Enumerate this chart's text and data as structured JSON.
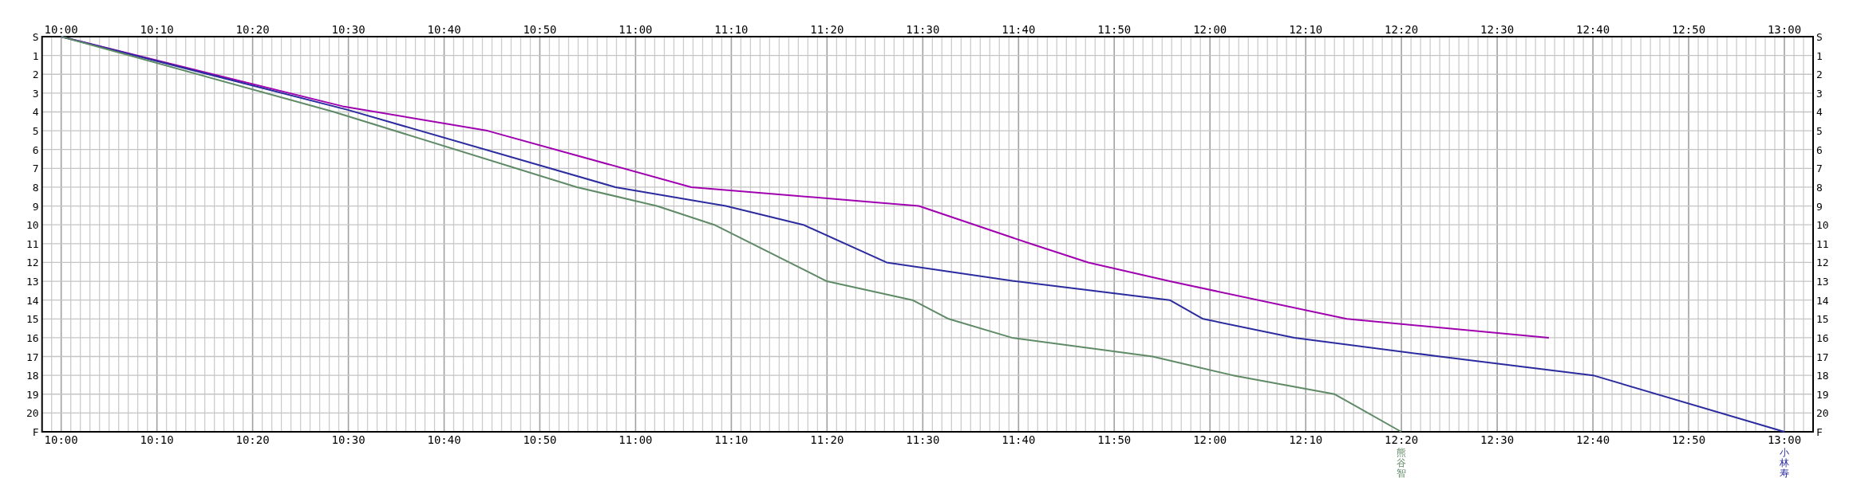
{
  "chart_data": {
    "type": "line",
    "grid": true,
    "xlim": [
      9.9667,
      13.05
    ],
    "x2lim": [
      9.9667,
      13.05
    ],
    "ylim": [
      21,
      0
    ],
    "y2lim": [
      21,
      0
    ],
    "xticks": [
      {
        "value": 9.9833,
        "label": null
      },
      {
        "value": 10,
        "label": "10:00"
      },
      {
        "value": 10.0167,
        "label": null
      },
      {
        "value": 10.0333,
        "label": null
      },
      {
        "value": 10.05,
        "label": null
      },
      {
        "value": 10.0667,
        "label": null
      },
      {
        "value": 10.0833,
        "label": null
      },
      {
        "value": 10.1,
        "label": null
      },
      {
        "value": 10.1167,
        "label": null
      },
      {
        "value": 10.1333,
        "label": null
      },
      {
        "value": 10.15,
        "label": null
      },
      {
        "value": 10.1667,
        "label": "10:10"
      },
      {
        "value": 10.1833,
        "label": null
      },
      {
        "value": 10.2,
        "label": null
      },
      {
        "value": 10.2167,
        "label": null
      },
      {
        "value": 10.2333,
        "label": null
      },
      {
        "value": 10.25,
        "label": null
      },
      {
        "value": 10.2667,
        "label": null
      },
      {
        "value": 10.2833,
        "label": null
      },
      {
        "value": 10.3,
        "label": null
      },
      {
        "value": 10.3167,
        "label": null
      },
      {
        "value": 10.3333,
        "label": "10:20"
      },
      {
        "value": 10.35,
        "label": null
      },
      {
        "value": 10.3667,
        "label": null
      },
      {
        "value": 10.3833,
        "label": null
      },
      {
        "value": 10.4,
        "label": null
      },
      {
        "value": 10.4167,
        "label": null
      },
      {
        "value": 10.4333,
        "label": null
      },
      {
        "value": 10.45,
        "label": null
      },
      {
        "value": 10.4667,
        "label": null
      },
      {
        "value": 10.4833,
        "label": null
      },
      {
        "value": 10.5,
        "label": "10:30"
      },
      {
        "value": 10.5167,
        "label": null
      },
      {
        "value": 10.5333,
        "label": null
      },
      {
        "value": 10.55,
        "label": null
      },
      {
        "value": 10.5667,
        "label": null
      },
      {
        "value": 10.5833,
        "label": null
      },
      {
        "value": 10.6,
        "label": null
      },
      {
        "value": 10.6167,
        "label": null
      },
      {
        "value": 10.6333,
        "label": null
      },
      {
        "value": 10.65,
        "label": null
      },
      {
        "value": 10.6667,
        "label": "10:40"
      },
      {
        "value": 10.6833,
        "label": null
      },
      {
        "value": 10.7,
        "label": null
      },
      {
        "value": 10.7167,
        "label": null
      },
      {
        "value": 10.7333,
        "label": null
      },
      {
        "value": 10.75,
        "label": null
      },
      {
        "value": 10.7667,
        "label": null
      },
      {
        "value": 10.7833,
        "label": null
      },
      {
        "value": 10.8,
        "label": null
      },
      {
        "value": 10.8167,
        "label": null
      },
      {
        "value": 10.8333,
        "label": "10:50"
      },
      {
        "value": 10.85,
        "label": null
      },
      {
        "value": 10.8667,
        "label": null
      },
      {
        "value": 10.8833,
        "label": null
      },
      {
        "value": 10.9,
        "label": null
      },
      {
        "value": 10.9167,
        "label": null
      },
      {
        "value": 10.9333,
        "label": null
      },
      {
        "value": 10.95,
        "label": null
      },
      {
        "value": 10.9667,
        "label": null
      },
      {
        "value": 10.9833,
        "label": null
      },
      {
        "value": 11,
        "label": "11:00"
      },
      {
        "value": 11.0167,
        "label": null
      },
      {
        "value": 11.0333,
        "label": null
      },
      {
        "value": 11.05,
        "label": null
      },
      {
        "value": 11.0667,
        "label": null
      },
      {
        "value": 11.0833,
        "label": null
      },
      {
        "value": 11.1,
        "label": null
      },
      {
        "value": 11.1167,
        "label": null
      },
      {
        "value": 11.1333,
        "label": null
      },
      {
        "value": 11.15,
        "label": null
      },
      {
        "value": 11.1667,
        "label": "11:10"
      },
      {
        "value": 11.1833,
        "label": null
      },
      {
        "value": 11.2,
        "label": null
      },
      {
        "value": 11.2167,
        "label": null
      },
      {
        "value": 11.2333,
        "label": null
      },
      {
        "value": 11.25,
        "label": null
      },
      {
        "value": 11.2667,
        "label": null
      },
      {
        "value": 11.2833,
        "label": null
      },
      {
        "value": 11.3,
        "label": null
      },
      {
        "value": 11.3167,
        "label": null
      },
      {
        "value": 11.3333,
        "label": "11:20"
      },
      {
        "value": 11.35,
        "label": null
      },
      {
        "value": 11.3667,
        "label": null
      },
      {
        "value": 11.3833,
        "label": null
      },
      {
        "value": 11.4,
        "label": null
      },
      {
        "value": 11.4167,
        "label": null
      },
      {
        "value": 11.4333,
        "label": null
      },
      {
        "value": 11.45,
        "label": null
      },
      {
        "value": 11.4667,
        "label": null
      },
      {
        "value": 11.4833,
        "label": null
      },
      {
        "value": 11.5,
        "label": "11:30"
      },
      {
        "value": 11.5167,
        "label": null
      },
      {
        "value": 11.5333,
        "label": null
      },
      {
        "value": 11.55,
        "label": null
      },
      {
        "value": 11.5667,
        "label": null
      },
      {
        "value": 11.5833,
        "label": null
      },
      {
        "value": 11.6,
        "label": null
      },
      {
        "value": 11.6167,
        "label": null
      },
      {
        "value": 11.6333,
        "label": null
      },
      {
        "value": 11.65,
        "label": null
      },
      {
        "value": 11.6667,
        "label": "11:40"
      },
      {
        "value": 11.6833,
        "label": null
      },
      {
        "value": 11.7,
        "label": null
      },
      {
        "value": 11.7167,
        "label": null
      },
      {
        "value": 11.7333,
        "label": null
      },
      {
        "value": 11.75,
        "label": null
      },
      {
        "value": 11.7667,
        "label": null
      },
      {
        "value": 11.7833,
        "label": null
      },
      {
        "value": 11.8,
        "label": null
      },
      {
        "value": 11.8167,
        "label": null
      },
      {
        "value": 11.8333,
        "label": "11:50"
      },
      {
        "value": 11.85,
        "label": null
      },
      {
        "value": 11.8667,
        "label": null
      },
      {
        "value": 11.8833,
        "label": null
      },
      {
        "value": 11.9,
        "label": null
      },
      {
        "value": 11.9167,
        "label": null
      },
      {
        "value": 11.9333,
        "label": null
      },
      {
        "value": 11.95,
        "label": null
      },
      {
        "value": 11.9667,
        "label": null
      },
      {
        "value": 11.9833,
        "label": null
      },
      {
        "value": 12,
        "label": "12:00"
      },
      {
        "value": 12.0167,
        "label": null
      },
      {
        "value": 12.0333,
        "label": null
      },
      {
        "value": 12.05,
        "label": null
      },
      {
        "value": 12.0667,
        "label": null
      },
      {
        "value": 12.0833,
        "label": null
      },
      {
        "value": 12.1,
        "label": null
      },
      {
        "value": 12.1167,
        "label": null
      },
      {
        "value": 12.1333,
        "label": null
      },
      {
        "value": 12.15,
        "label": null
      },
      {
        "value": 12.1667,
        "label": "12:10"
      },
      {
        "value": 12.1833,
        "label": null
      },
      {
        "value": 12.2,
        "label": null
      },
      {
        "value": 12.2167,
        "label": null
      },
      {
        "value": 12.2333,
        "label": null
      },
      {
        "value": 12.25,
        "label": null
      },
      {
        "value": 12.2667,
        "label": null
      },
      {
        "value": 12.2833,
        "label": null
      },
      {
        "value": 12.3,
        "label": null
      },
      {
        "value": 12.3167,
        "label": null
      },
      {
        "value": 12.3333,
        "label": "12:20"
      },
      {
        "value": 12.35,
        "label": null
      },
      {
        "value": 12.3667,
        "label": null
      },
      {
        "value": 12.3833,
        "label": null
      },
      {
        "value": 12.4,
        "label": null
      },
      {
        "value": 12.4167,
        "label": null
      },
      {
        "value": 12.4333,
        "label": null
      },
      {
        "value": 12.45,
        "label": null
      },
      {
        "value": 12.4667,
        "label": null
      },
      {
        "value": 12.4833,
        "label": null
      },
      {
        "value": 12.5,
        "label": "12:30"
      },
      {
        "value": 12.5167,
        "label": null
      },
      {
        "value": 12.5333,
        "label": null
      },
      {
        "value": 12.55,
        "label": null
      },
      {
        "value": 12.5667,
        "label": null
      },
      {
        "value": 12.5833,
        "label": null
      },
      {
        "value": 12.6,
        "label": null
      },
      {
        "value": 12.6167,
        "label": null
      },
      {
        "value": 12.6333,
        "label": null
      },
      {
        "value": 12.65,
        "label": null
      },
      {
        "value": 12.6667,
        "label": "12:40"
      },
      {
        "value": 12.6833,
        "label": null
      },
      {
        "value": 12.7,
        "label": null
      },
      {
        "value": 12.7167,
        "label": null
      },
      {
        "value": 12.7333,
        "label": null
      },
      {
        "value": 12.75,
        "label": null
      },
      {
        "value": 12.7667,
        "label": null
      },
      {
        "value": 12.7833,
        "label": null
      },
      {
        "value": 12.8,
        "label": null
      },
      {
        "value": 12.8167,
        "label": null
      },
      {
        "value": 12.8333,
        "label": "12:50"
      },
      {
        "value": 12.85,
        "label": null
      },
      {
        "value": 12.8667,
        "label": null
      },
      {
        "value": 12.8833,
        "label": null
      },
      {
        "value": 12.9,
        "label": null
      },
      {
        "value": 12.9167,
        "label": null
      },
      {
        "value": 12.9333,
        "label": null
      },
      {
        "value": 12.95,
        "label": null
      },
      {
        "value": 12.9667,
        "label": null
      },
      {
        "value": 12.9833,
        "label": null
      },
      {
        "value": 13,
        "label": "13:00"
      },
      {
        "value": 13.0167,
        "label": null
      },
      {
        "value": 13.0333,
        "label": null
      }
    ],
    "x2ticks": [
      {
        "value": 10,
        "label": "10:00"
      },
      {
        "value": 10.1667,
        "label": "10:10"
      },
      {
        "value": 10.3333,
        "label": "10:20"
      },
      {
        "value": 10.5,
        "label": "10:30"
      },
      {
        "value": 10.6667,
        "label": "10:40"
      },
      {
        "value": 10.8333,
        "label": "10:50"
      },
      {
        "value": 11,
        "label": "11:00"
      },
      {
        "value": 11.1667,
        "label": "11:10"
      },
      {
        "value": 11.3333,
        "label": "11:20"
      },
      {
        "value": 11.5,
        "label": "11:30"
      },
      {
        "value": 11.6667,
        "label": "11:40"
      },
      {
        "value": 11.8333,
        "label": "11:50"
      },
      {
        "value": 12,
        "label": "12:00"
      },
      {
        "value": 12.1667,
        "label": "12:10"
      },
      {
        "value": 12.3333,
        "label": "12:20"
      },
      {
        "value": 12.5,
        "label": "12:30"
      },
      {
        "value": 12.6667,
        "label": "12:40"
      },
      {
        "value": 12.8333,
        "label": "12:50"
      },
      {
        "value": 13,
        "label": "13:00"
      }
    ],
    "yticks": [
      {
        "value": 0,
        "label": "S"
      },
      1,
      2,
      3,
      4,
      5,
      6,
      7,
      8,
      9,
      10,
      11,
      12,
      13,
      14,
      15,
      16,
      17,
      18,
      19,
      20,
      {
        "value": 21,
        "label": "F"
      }
    ],
    "y2ticks": [
      {
        "value": 0,
        "label": "S"
      },
      1,
      2,
      3,
      4,
      5,
      6,
      7,
      8,
      9,
      10,
      11,
      12,
      13,
      14,
      15,
      16,
      17,
      18,
      19,
      20,
      {
        "value": 21,
        "label": "F"
      }
    ],
    "series": [
      {
        "color": "#a000b0",
        "x": [
          10,
          10.49,
          10.742,
          11.097,
          11.493,
          11.687,
          11.788,
          11.93,
          12.238,
          12.59
        ],
        "values": [
          0,
          3.7,
          5,
          8,
          9,
          11,
          12,
          13,
          15,
          16
        ]
      },
      {
        "name": "小林寿",
        "color": "#2b2ba0",
        "x": [
          10,
          10.5,
          10.965,
          11.157,
          11.292,
          11.437,
          11.662,
          11.93,
          11.988,
          12.147,
          12.4,
          12.667,
          13
        ],
        "values": [
          0,
          3.9,
          8,
          9,
          10,
          12,
          13,
          14,
          15,
          16,
          17,
          18,
          21
        ]
      },
      {
        "name": "熊谷智",
        "color": "#5f8a66",
        "x": [
          10,
          10.475,
          10.898,
          11.037,
          11.137,
          11.333,
          11.482,
          11.545,
          11.655,
          11.9,
          12.04,
          12.217,
          12.333
        ],
        "values": [
          0,
          4,
          8,
          9,
          10,
          13,
          14,
          15,
          16,
          17,
          18,
          19,
          21
        ]
      }
    ]
  }
}
